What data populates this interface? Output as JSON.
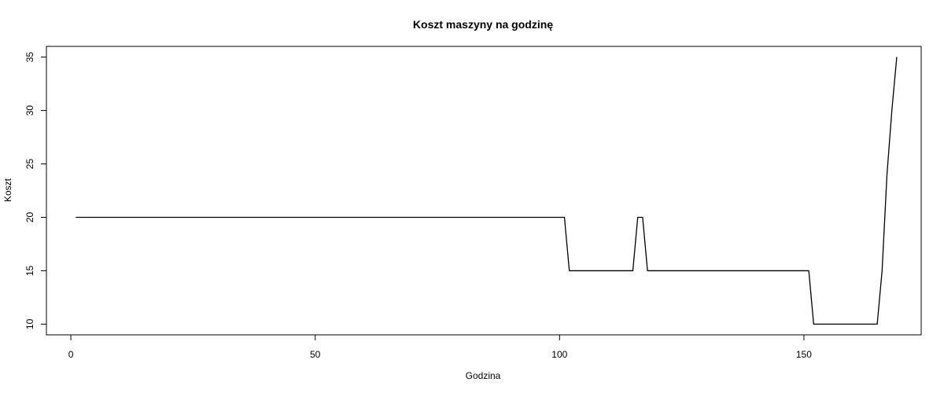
{
  "chart_data": {
    "type": "line",
    "title": "Koszt maszyny na godzinę",
    "xlabel": "Godzina",
    "ylabel": "Koszt",
    "xlim": [
      -5,
      174
    ],
    "ylim": [
      9.0,
      36.0
    ],
    "x_ticks": [
      0,
      50,
      100,
      150
    ],
    "y_ticks": [
      10,
      15,
      20,
      25,
      30,
      35
    ],
    "grid": false,
    "line_color": "#000000",
    "series": [
      {
        "points": [
          [
            1,
            20
          ],
          [
            101,
            20
          ],
          [
            102,
            15
          ],
          [
            115,
            15
          ],
          [
            116,
            20
          ],
          [
            117,
            20
          ],
          [
            118,
            15
          ],
          [
            150,
            15
          ],
          [
            151,
            15
          ],
          [
            152,
            10
          ],
          [
            165,
            10
          ],
          [
            166,
            15
          ],
          [
            167,
            24
          ],
          [
            168,
            30
          ],
          [
            169,
            35
          ]
        ]
      }
    ]
  }
}
